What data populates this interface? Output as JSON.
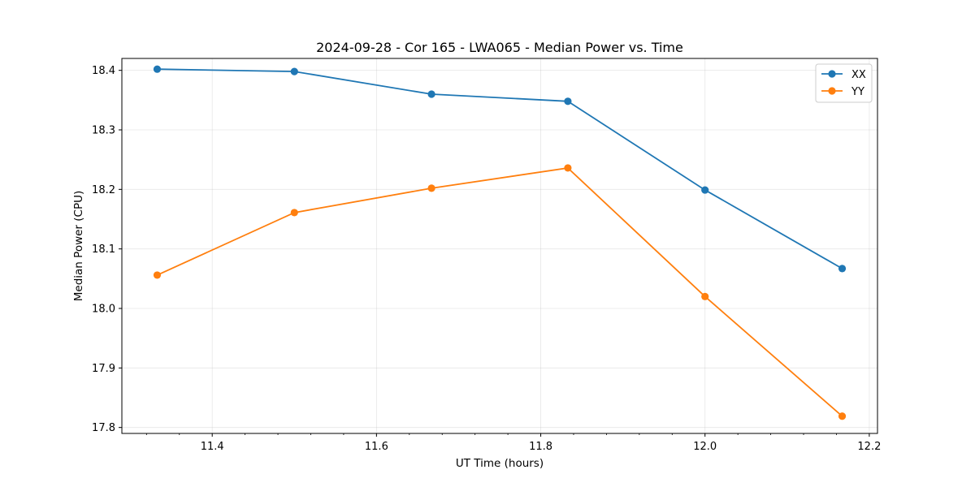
{
  "chart_data": {
    "type": "line",
    "title": "2024-09-28 - Cor 165 - LWA065 - Median Power vs. Time",
    "xlabel": "UT Time (hours)",
    "ylabel": "Median Power (CPU)",
    "xlim": [
      11.29,
      12.21
    ],
    "ylim": [
      17.79,
      18.42
    ],
    "xticks": [
      11.4,
      11.6,
      11.8,
      12.0,
      12.2
    ],
    "xtick_labels": [
      "11.4",
      "11.6",
      "11.8",
      "12.0",
      "12.2"
    ],
    "yticks": [
      17.8,
      17.9,
      18.0,
      18.1,
      18.2,
      18.3,
      18.4
    ],
    "ytick_labels": [
      "17.8",
      "17.9",
      "18.0",
      "18.1",
      "18.2",
      "18.3",
      "18.4"
    ],
    "grid": true,
    "legend_position": "top-right",
    "x": [
      11.333,
      11.5,
      11.667,
      11.833,
      12.0,
      12.167
    ],
    "series": [
      {
        "name": "XX",
        "color": "#1f77b4",
        "marker": "circle",
        "values": [
          18.402,
          18.398,
          18.36,
          18.348,
          18.199,
          18.067
        ]
      },
      {
        "name": "YY",
        "color": "#ff7f0e",
        "marker": "circle",
        "values": [
          18.056,
          18.161,
          18.202,
          18.236,
          18.02,
          17.819
        ]
      }
    ]
  }
}
